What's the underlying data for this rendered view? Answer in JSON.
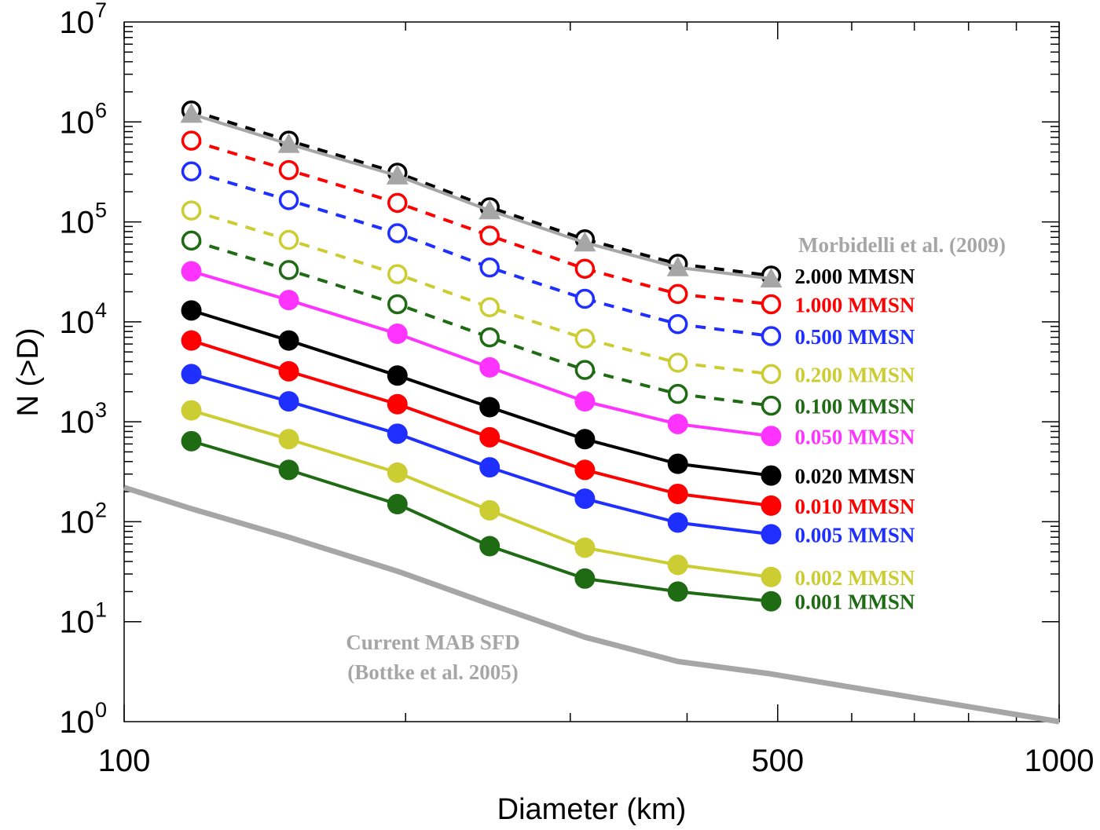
{
  "chart_data": {
    "type": "line",
    "title": "",
    "xlabel": "Diameter (km)",
    "ylabel": "N (>D)",
    "xscale": "log",
    "yscale": "log",
    "xlim": [
      100,
      1000
    ],
    "ylim": [
      1,
      10000000
    ],
    "grid": false,
    "xticks": [
      {
        "value": 100,
        "label": "100"
      },
      {
        "value": 500,
        "label": "500"
      },
      {
        "value": 1000,
        "label": "1000"
      }
    ],
    "yticks": [
      {
        "value": 1,
        "base": "10",
        "exp": "0"
      },
      {
        "value": 10,
        "base": "10",
        "exp": "1"
      },
      {
        "value": 100,
        "base": "10",
        "exp": "2"
      },
      {
        "value": 1000,
        "base": "10",
        "exp": "3"
      },
      {
        "value": 10000,
        "base": "10",
        "exp": "4"
      },
      {
        "value": 100000,
        "base": "10",
        "exp": "5"
      },
      {
        "value": 1000000,
        "base": "10",
        "exp": "6"
      },
      {
        "value": 10000000,
        "base": "10",
        "exp": "7"
      }
    ],
    "x": [
      118,
      150,
      196,
      246,
      311,
      391,
      492
    ],
    "series": [
      {
        "name": "2.000 MMSN",
        "color": "#000000",
        "style": "dashed",
        "marker": "open",
        "values": [
          1300000,
          650000,
          310000,
          140000,
          67000,
          38000,
          29000
        ]
      },
      {
        "name": "1.000 MMSN",
        "color": "#ff0000",
        "style": "dashed",
        "marker": "open",
        "values": [
          650000,
          330000,
          155000,
          73000,
          34000,
          19000,
          15000
        ]
      },
      {
        "name": "0.500 MMSN",
        "color": "#1f2fff",
        "style": "dashed",
        "marker": "open",
        "values": [
          320000,
          165000,
          77000,
          35000,
          17000,
          9500,
          7200
        ]
      },
      {
        "name": "0.200 MMSN",
        "color": "#cccc33",
        "style": "dashed",
        "marker": "open",
        "values": [
          130000,
          66000,
          30000,
          14000,
          6800,
          3900,
          3000
        ]
      },
      {
        "name": "0.100 MMSN",
        "color": "#1f6b14",
        "style": "dashed",
        "marker": "open",
        "values": [
          65000,
          33000,
          15000,
          7000,
          3300,
          1900,
          1450
        ]
      },
      {
        "name": "0.050 MMSN",
        "color": "#ff33ff",
        "style": "solid",
        "marker": "filled",
        "values": [
          32000,
          16500,
          7600,
          3500,
          1600,
          950,
          720
        ]
      },
      {
        "name": "0.020 MMSN",
        "color": "#000000",
        "style": "solid",
        "marker": "filled",
        "values": [
          13000,
          6500,
          2900,
          1400,
          670,
          380,
          290
        ]
      },
      {
        "name": "0.010 MMSN",
        "color": "#ff0000",
        "style": "solid",
        "marker": "filled",
        "values": [
          6500,
          3200,
          1500,
          700,
          330,
          190,
          145
        ]
      },
      {
        "name": "0.005 MMSN",
        "color": "#1f2fff",
        "style": "solid",
        "marker": "filled",
        "values": [
          3000,
          1600,
          760,
          350,
          170,
          98,
          75
        ]
      },
      {
        "name": "0.002 MMSN",
        "color": "#cccc33",
        "style": "solid",
        "marker": "filled",
        "values": [
          1300,
          670,
          310,
          130,
          55,
          37,
          28
        ]
      },
      {
        "name": "0.001 MMSN",
        "color": "#1f6b14",
        "style": "solid",
        "marker": "filled",
        "values": [
          640,
          330,
          150,
          57,
          27,
          20,
          16
        ]
      }
    ],
    "reference_curves": [
      {
        "name": "Morbidelli et al. (2009)",
        "color": "#a6a6a6",
        "marker": "triangle",
        "x": [
          118,
          150,
          196,
          246,
          311,
          391,
          492
        ],
        "values": [
          1200000,
          600000,
          290000,
          130000,
          62000,
          35000,
          27000
        ]
      },
      {
        "name": "Current MAB SFD",
        "name2": "(Bottke et al. 2005)",
        "color": "#a6a6a6",
        "marker": "none",
        "x": [
          100,
          118,
          150,
          196,
          246,
          311,
          391,
          492,
          1000
        ],
        "values": [
          220,
          135,
          70,
          32,
          15,
          7,
          4,
          3,
          1
        ]
      }
    ]
  }
}
